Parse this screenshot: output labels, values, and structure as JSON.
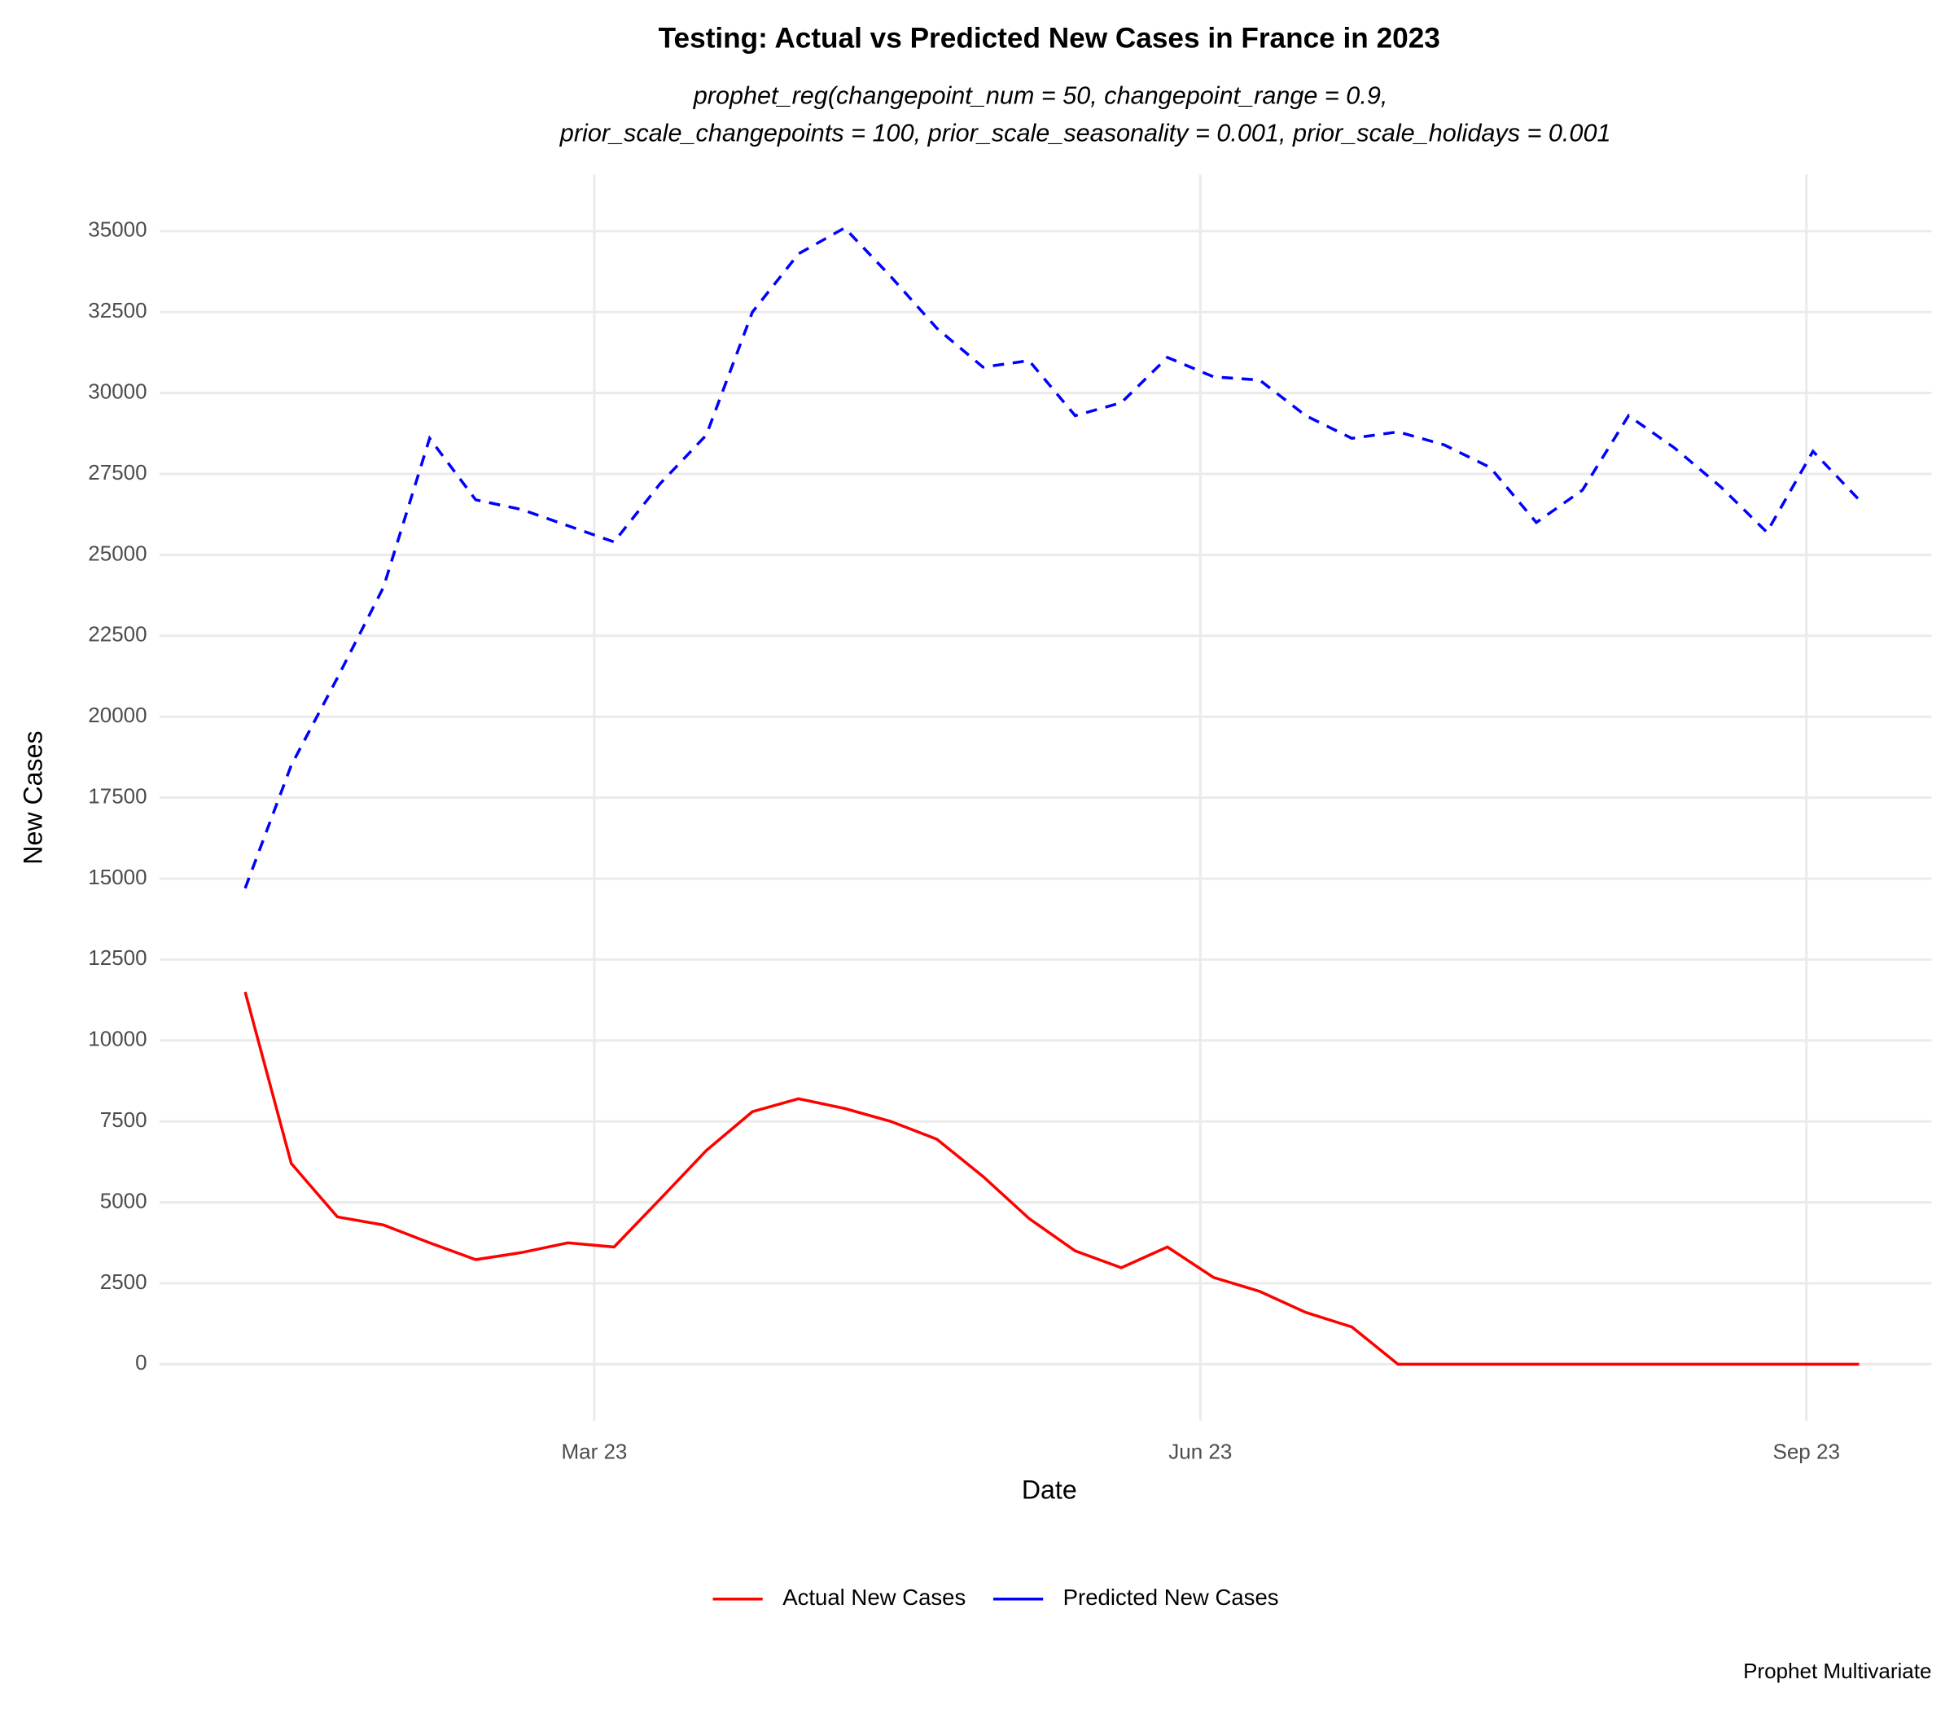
{
  "chart_data": {
    "type": "line",
    "title": "Testing: Actual vs Predicted New Cases in France in 2023",
    "subtitle": [
      "prophet_reg(changepoint_num = 50, changepoint_range = 0.9,",
      "prior_scale_changepoints = 100, prior_scale_seasonality = 0.001, prior_scale_holidays = 0.001"
    ],
    "x_label": "Date",
    "y_label": "New Cases",
    "caption": "Prophet Multivariate",
    "x": [
      "2023-01-07",
      "2023-01-14",
      "2023-01-21",
      "2023-01-28",
      "2023-02-04",
      "2023-02-11",
      "2023-02-18",
      "2023-02-25",
      "2023-03-04",
      "2023-03-11",
      "2023-03-18",
      "2023-03-25",
      "2023-04-01",
      "2023-04-08",
      "2023-04-15",
      "2023-04-22",
      "2023-04-29",
      "2023-05-06",
      "2023-05-13",
      "2023-05-20",
      "2023-05-27",
      "2023-06-03",
      "2023-06-10",
      "2023-06-17",
      "2023-06-24",
      "2023-07-01",
      "2023-07-08",
      "2023-07-15",
      "2023-07-22",
      "2023-07-29",
      "2023-08-05",
      "2023-08-12",
      "2023-08-19",
      "2023-08-26",
      "2023-09-02",
      "2023-09-09"
    ],
    "series": [
      {
        "name": "Actual New Cases",
        "color": "#ff0000",
        "linetype": "solid",
        "values": [
          11500,
          6200,
          4550,
          4300,
          3750,
          3230,
          3450,
          3750,
          3620,
          5100,
          6600,
          7800,
          8200,
          7900,
          7500,
          6950,
          5800,
          4500,
          3500,
          2980,
          3620,
          2680,
          2250,
          1600,
          1150,
          0,
          0,
          0,
          0,
          0,
          0,
          0,
          0,
          0,
          0,
          0
        ]
      },
      {
        "name": "Predicted New Cases",
        "color": "#0000ff",
        "linetype": "dashed",
        "values": [
          14700,
          18500,
          21200,
          24000,
          28600,
          26700,
          26400,
          25900,
          25400,
          27200,
          28700,
          32500,
          34300,
          35100,
          33600,
          32000,
          30800,
          31000,
          29300,
          29700,
          31100,
          30500,
          30400,
          29300,
          28600,
          28800,
          28400,
          27700,
          26000,
          27000,
          29300,
          28300,
          27100,
          25700,
          28200,
          26700
        ]
      }
    ],
    "xlim": [
      "2022-12-25",
      "2023-09-20"
    ],
    "xticks": [
      {
        "value": "2023-03-01",
        "label": "Mar 23"
      },
      {
        "value": "2023-06-01",
        "label": "Jun 23"
      },
      {
        "value": "2023-09-01",
        "label": "Sep 23"
      }
    ],
    "ylim": [
      -1750,
      36750
    ],
    "yticks": [
      0,
      2500,
      5000,
      7500,
      10000,
      12500,
      15000,
      17500,
      20000,
      22500,
      25000,
      27500,
      30000,
      32500,
      35000
    ],
    "grid": true,
    "legend": "bottom"
  }
}
